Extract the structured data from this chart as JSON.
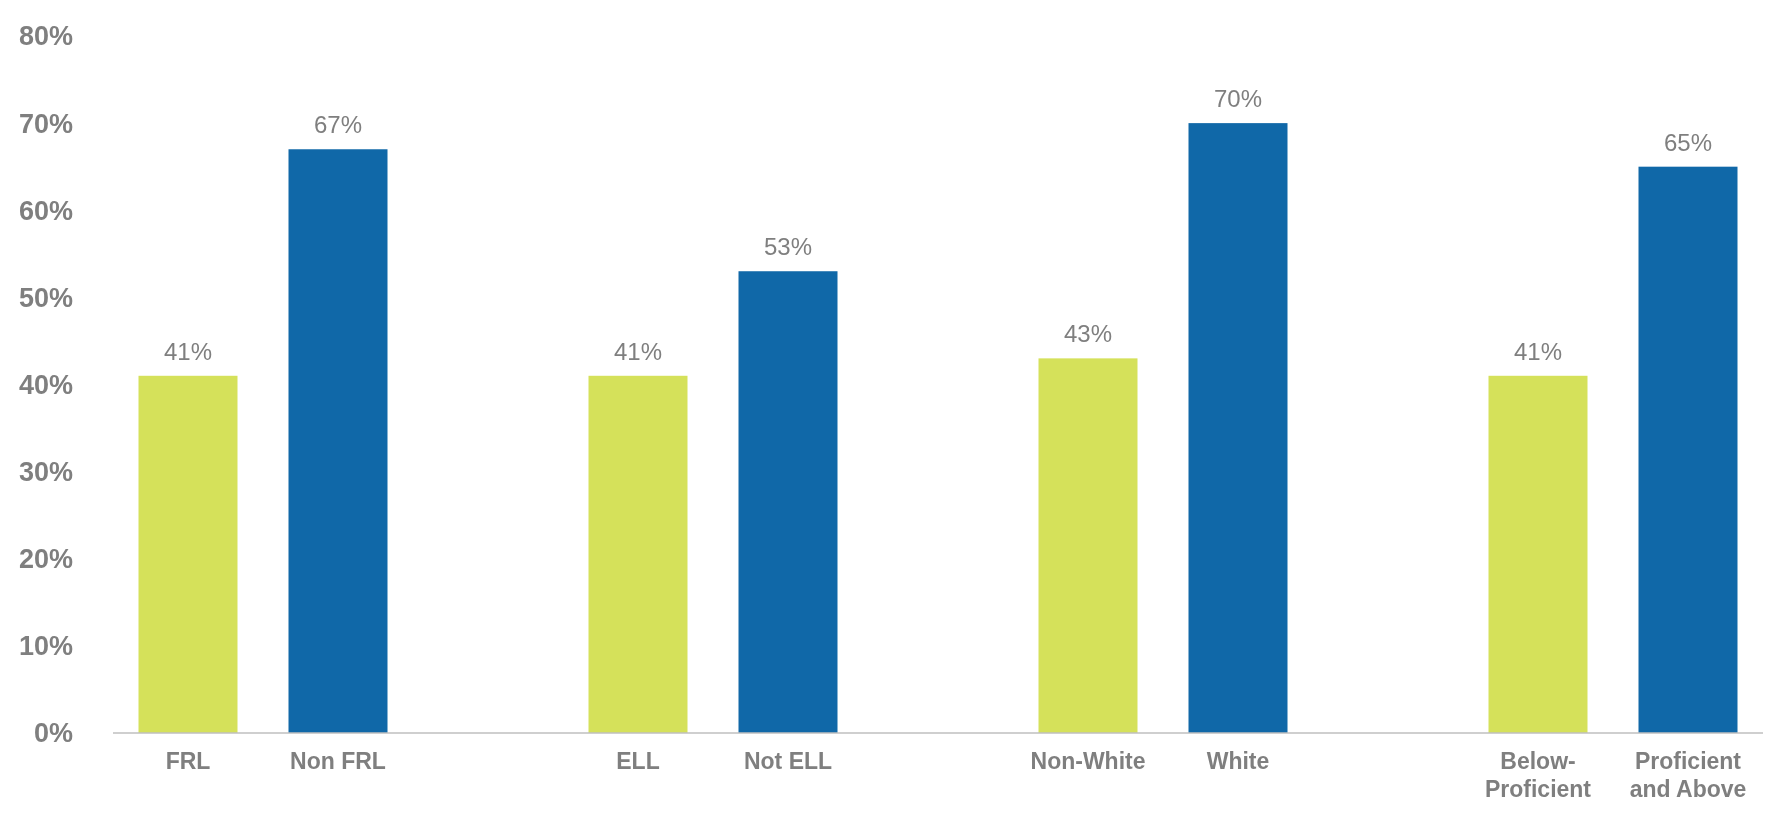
{
  "chart_data": {
    "type": "bar",
    "categories": [
      "FRL",
      "Non FRL",
      null,
      "ELL",
      "Not ELL",
      null,
      "Non-White",
      "White",
      null,
      "Below-Proficient",
      "Proficient and Above"
    ],
    "values": [
      41,
      67,
      null,
      41,
      53,
      null,
      43,
      70,
      null,
      41,
      65
    ],
    "colors": [
      "#d5e15a",
      "#1068a8",
      null,
      "#d5e15a",
      "#1068a8",
      null,
      "#d5e15a",
      "#1068a8",
      null,
      "#d5e15a",
      "#1068a8"
    ],
    "value_labels": [
      "41%",
      "67%",
      null,
      "41%",
      "53%",
      null,
      "43%",
      "70%",
      null,
      "41%",
      "65%"
    ],
    "ylim": [
      0,
      80
    ],
    "yticks": [
      {
        "value": 0,
        "label": "0%"
      },
      {
        "value": 10,
        "label": "10%"
      },
      {
        "value": 20,
        "label": "20%"
      },
      {
        "value": 30,
        "label": "30%"
      },
      {
        "value": 40,
        "label": "40%"
      },
      {
        "value": 50,
        "label": "50%"
      },
      {
        "value": 60,
        "label": "60%"
      },
      {
        "value": 70,
        "label": "70%"
      },
      {
        "value": 80,
        "label": "80%"
      }
    ],
    "grid": false
  }
}
